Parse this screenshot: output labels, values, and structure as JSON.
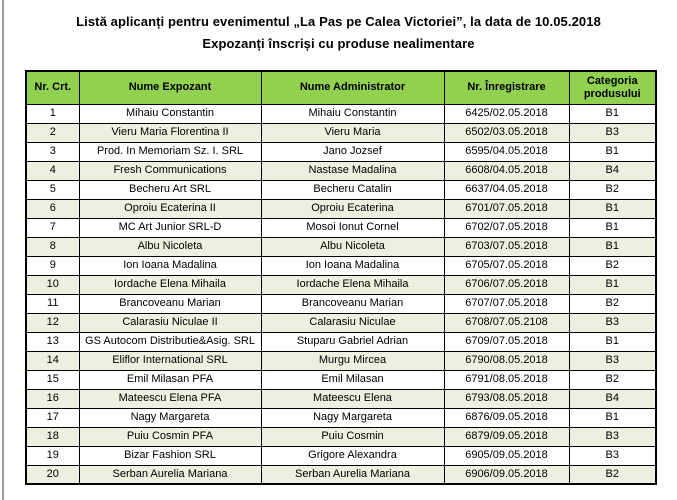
{
  "page": {
    "title_line1": "Listă aplicanți pentru evenimentul „La Pas pe Calea Victoriei”, la data de 10.05.2018",
    "title_line2": "Expozanți înscriși cu produse nealimentare"
  },
  "table": {
    "columns": [
      "Nr. Crt.",
      "Nume Expozant",
      "Nume Administrator",
      "Nr. Înregistrare",
      "Categoria produsului"
    ],
    "rows": [
      [
        "1",
        "Mihaiu Constantin",
        "Mihaiu Constantin",
        "6425/02.05.2018",
        "B1"
      ],
      [
        "2",
        "Vieru Maria Florentina II",
        "Vieru Maria",
        "6502/03.05.2018",
        "B3"
      ],
      [
        "3",
        "Prod. In Memoriam Sz. I. SRL",
        "Jano Jozsef",
        "6595/04.05.2018",
        "B1"
      ],
      [
        "4",
        "Fresh Communications",
        "Nastase Madalina",
        "6608/04.05.2018",
        "B4"
      ],
      [
        "5",
        "Becheru Art SRL",
        "Becheru Catalin",
        "6637/04.05.2018",
        "B2"
      ],
      [
        "6",
        "Oproiu Ecaterina II",
        "Oproiu Ecaterina",
        "6701/07.05.2018",
        "B1"
      ],
      [
        "7",
        "MC Art Junior SRL-D",
        "Mosoi Ionut Cornel",
        "6702/07.05.2018",
        "B1"
      ],
      [
        "8",
        "Albu Nicoleta",
        "Albu Nicoleta",
        "6703/07.05.2018",
        "B1"
      ],
      [
        "9",
        "Ion Ioana Madalina",
        "Ion Ioana Madalina",
        "6705/07.05.2018",
        "B2"
      ],
      [
        "10",
        "Iordache Elena Mihaila",
        "Iordache Elena Mihaila",
        "6706/07.05.2018",
        "B1"
      ],
      [
        "11",
        "Brancoveanu Marian",
        "Brancoveanu Marian",
        "6707/07.05.2018",
        "B2"
      ],
      [
        "12",
        "Calarasiu Niculae II",
        "Calarasiu Niculae",
        "6708/07.05.2108",
        "B3"
      ],
      [
        "13",
        "GS Autocom Distributie&Asig. SRL",
        "Stuparu Gabriel Adrian",
        "6709/07.05.2018",
        "B1"
      ],
      [
        "14",
        "Eliflor International SRL",
        "Murgu Mircea",
        "6790/08.05.2018",
        "B3"
      ],
      [
        "15",
        "Emil Milasan PFA",
        "Emil Milasan",
        "6791/08.05.2018",
        "B2"
      ],
      [
        "16",
        "Mateescu Elena PFA",
        "Mateescu Elena",
        "6793/08.05.2018",
        "B4"
      ],
      [
        "17",
        "Nagy Margareta",
        "Nagy Margareta",
        "6876/09.05.2018",
        "B1"
      ],
      [
        "18",
        "Puiu Cosmin PFA",
        "Puiu Cosmin",
        "6879/09.05.2018",
        "B3"
      ],
      [
        "19",
        "Bizar Fashion SRL",
        "Grigore Alexandra",
        "6905/09.05.2018",
        "B3"
      ],
      [
        "20",
        "Serban Aurelia Mariana",
        "Serban Aurelia Mariana",
        "6906/09.05.2018",
        "B2"
      ]
    ],
    "colors": {
      "header_bg": "#92D050",
      "row_alt_bg": "#EBF1DE",
      "border": "#000000"
    }
  }
}
